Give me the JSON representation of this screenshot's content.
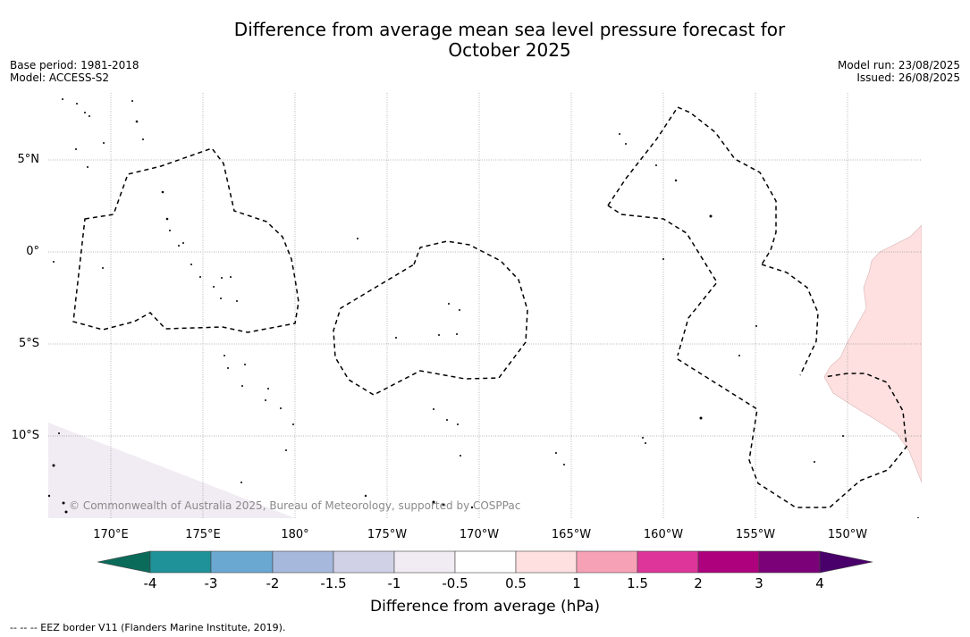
{
  "title_line1": "Difference from average mean sea level pressure forecast for",
  "title_line2": "October 2025",
  "meta_left": {
    "base_period": "Base period: 1981-2018",
    "model": "Model: ACCESS-S2"
  },
  "meta_right": {
    "model_run": "Model run: 23/08/2025",
    "issued": "Issued: 26/08/2025"
  },
  "map": {
    "lat_labels": [
      "5°N",
      "0°",
      "5°S",
      "10°S"
    ],
    "lon_labels": [
      "170°E",
      "175°E",
      "180°",
      "175°W",
      "170°W",
      "165°W",
      "160°W",
      "155°W",
      "150°W"
    ],
    "contour_style": "dashed black",
    "shaded_regions": [
      {
        "name": "positive-anomaly-east",
        "category": "0.5 to 1",
        "color": "#fde0df"
      },
      {
        "name": "negative-anomaly-southwest",
        "category": "-1 to -0.5",
        "color": "#f1ebf3"
      }
    ]
  },
  "copyright": "© Commonwealth of Australia 2025, Bureau of Meteorology, supported by COSPPac",
  "colorbar": {
    "title": "Difference from average (hPa)",
    "ticks": [
      "-4",
      "-3",
      "-2",
      "-1.5",
      "-1",
      "-0.5",
      "0.5",
      "1",
      "1.5",
      "2",
      "3",
      "4"
    ],
    "colors": [
      "#0b6b5b",
      "#1f9198",
      "#6aa8d2",
      "#a6b9dc",
      "#d0d1e6",
      "#f1ebf3",
      "#ffffff",
      "#fde0df",
      "#f7a1b6",
      "#dd3599",
      "#ad017e",
      "#7a0177",
      "#49006a"
    ]
  },
  "footnote": "-- -- -- EEZ border V11 (Flanders Marine Institute, 2019)."
}
